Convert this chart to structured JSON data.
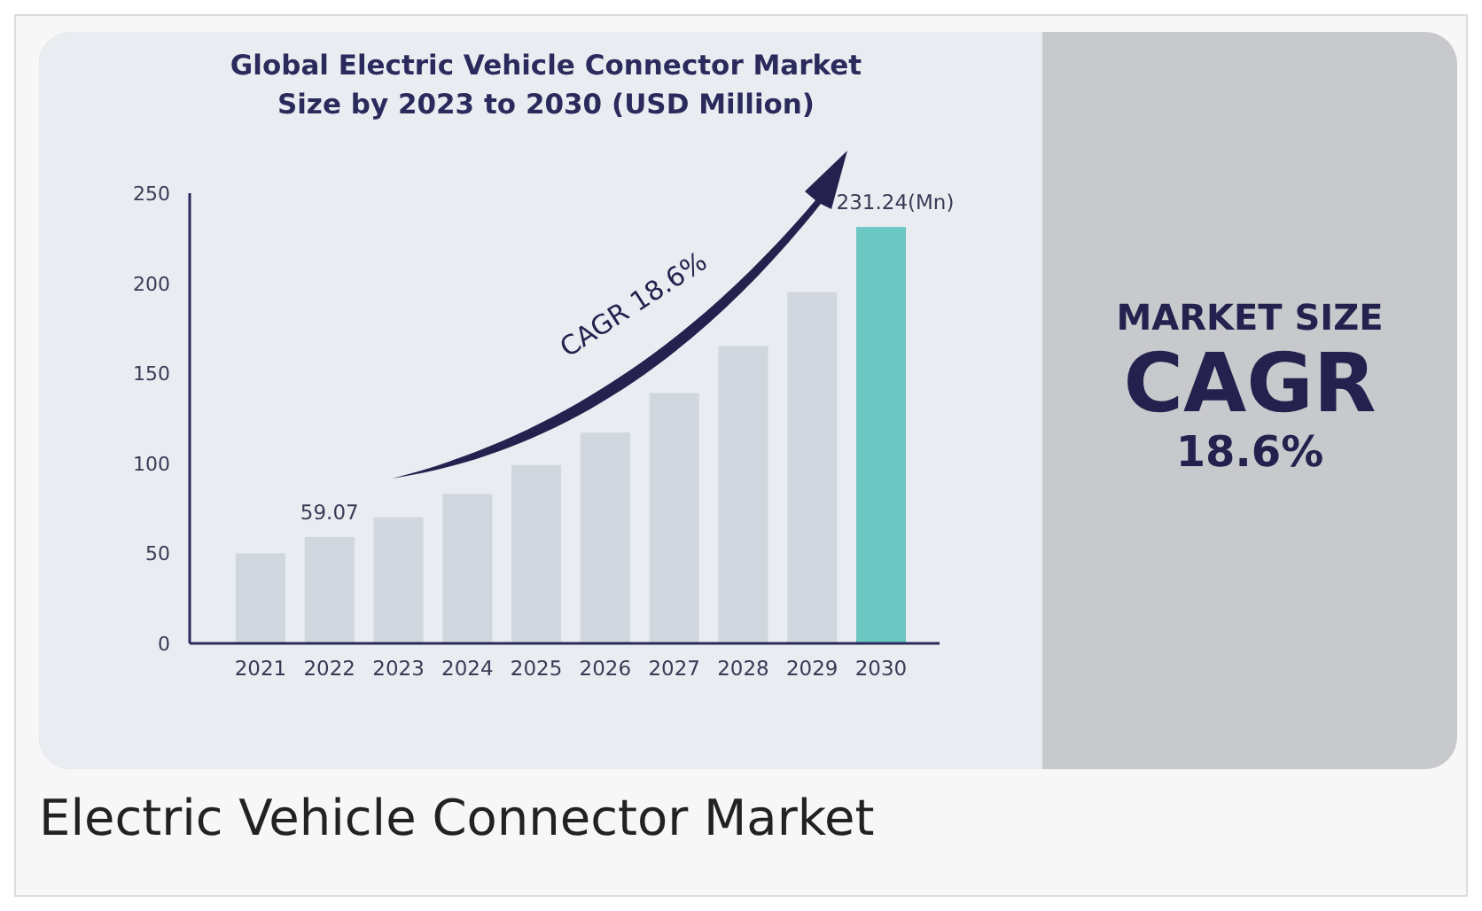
{
  "chart_data": {
    "type": "bar",
    "title": "Global Electric Vehicle Connector Market Size by 2023 to 2030 (USD Million)",
    "categories": [
      "2021",
      "2022",
      "2023",
      "2024",
      "2025",
      "2026",
      "2027",
      "2028",
      "2029",
      "2030"
    ],
    "values": [
      50,
      59.07,
      70,
      83,
      99,
      117,
      139,
      165,
      195,
      231.24
    ],
    "value_labels": [
      null,
      "59.07",
      null,
      null,
      null,
      null,
      null,
      null,
      null,
      "231.24(Mn)"
    ],
    "colors": [
      "#d1d7de",
      "#d1d7de",
      "#d1d7de",
      "#d1d7de",
      "#d1d7de",
      "#d1d7de",
      "#d1d7de",
      "#d1d7de",
      "#d1d7de",
      "#6cc8c2"
    ],
    "ylim": [
      0,
      250
    ],
    "yticks": [
      0,
      50,
      100,
      150,
      200,
      250
    ],
    "annotations": [
      "CAGR 18.6%",
      "MARKET SIZE",
      "CAGR",
      "18.6%",
      "Electric Vehicle Connector Market"
    ]
  }
}
